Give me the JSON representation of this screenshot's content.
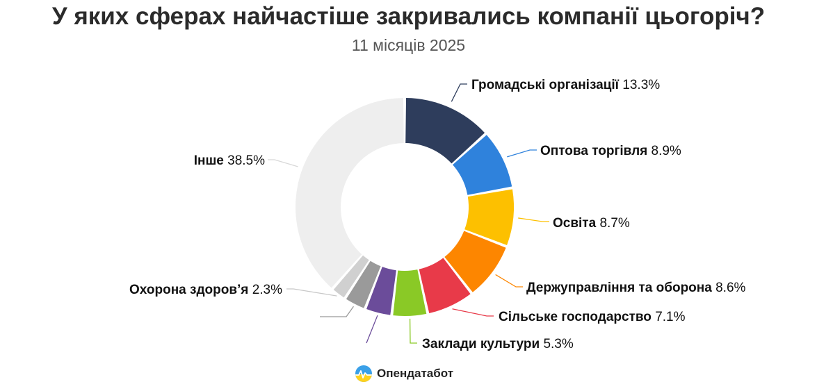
{
  "chart_data": {
    "type": "pie",
    "title": "У яких сферах найчастіше закривались компанії цьогоріч?",
    "subtitle": "11 місяців 2025",
    "unit": "%",
    "slices": [
      {
        "label": "Громадські організації",
        "value": 13.3,
        "value_label": "13.3%",
        "color": "#2e3d5c"
      },
      {
        "label": "Оптова торгівля",
        "value": 8.9,
        "value_label": "8.9%",
        "color": "#2f82dc"
      },
      {
        "label": "Освіта",
        "value": 8.7,
        "value_label": "8.7%",
        "color": "#fdc000"
      },
      {
        "label": "Держуправління та оборона",
        "value": 8.6,
        "value_label": "8.6%",
        "color": "#fd8600"
      },
      {
        "label": "Сільське господарство",
        "value": 7.1,
        "value_label": "7.1%",
        "color": "#e83a49"
      },
      {
        "label": "Заклади культури",
        "value": 5.3,
        "value_label": "5.3%",
        "color": "#8ac926"
      },
      {
        "label": "",
        "value": 4.0,
        "value_label": "",
        "color": "#6b4c9a"
      },
      {
        "label": "",
        "value": 3.3,
        "value_label": "",
        "color": "#9a9a9a"
      },
      {
        "label": "Охорона здоров’я",
        "value": 2.3,
        "value_label": "2.3%",
        "color": "#d0d0d0"
      },
      {
        "label": "Інше",
        "value": 38.5,
        "value_label": "38.5%",
        "color": "#eeeeee"
      }
    ]
  },
  "brand": {
    "name": "Опендатабот",
    "icon": "opendatabot-logo-icon"
  }
}
